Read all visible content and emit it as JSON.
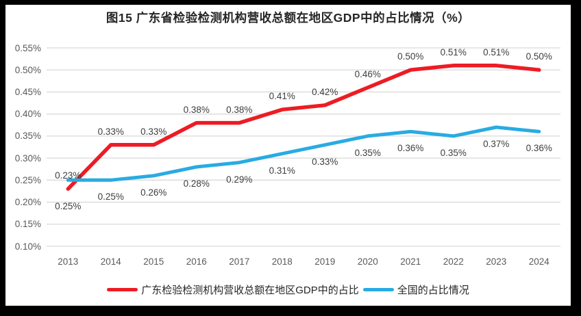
{
  "page": {
    "background_color": "#000000",
    "chart_background_color": "#ffffff"
  },
  "chart_data": {
    "type": "line",
    "title": "图15  广东省检验检测机构营收总额在地区GDP中的占比情况（%）",
    "categories": [
      "2013",
      "2014",
      "2015",
      "2016",
      "2017",
      "2018",
      "2019",
      "2020",
      "2021",
      "2022",
      "2023",
      "2024"
    ],
    "series": [
      {
        "name": "广东检验检测机构营收总额在地区GDP中的占比",
        "color": "#ed1c24",
        "values": [
          0.23,
          0.33,
          0.33,
          0.38,
          0.38,
          0.41,
          0.42,
          0.46,
          0.5,
          0.51,
          0.51,
          0.5
        ],
        "labels": [
          "0.23%",
          "0.33%",
          "0.33%",
          "0.38%",
          "0.38%",
          "0.41%",
          "0.42%",
          "0.46%",
          "0.50%",
          "0.51%",
          "0.51%",
          "0.50%"
        ],
        "label_position": "above"
      },
      {
        "name": "全国的占比情况",
        "color": "#29abe2",
        "values": [
          0.25,
          0.25,
          0.26,
          0.28,
          0.29,
          0.31,
          0.33,
          0.35,
          0.36,
          0.35,
          0.37,
          0.36
        ],
        "labels": [
          "0.25%",
          "0.25%",
          "0.26%",
          "0.28%",
          "0.29%",
          "0.31%",
          "0.33%",
          "0.35%",
          "0.36%",
          "0.35%",
          "0.37%",
          "0.36%"
        ],
        "label_position": "below"
      }
    ],
    "y_axis": {
      "ticks": [
        "0.55%",
        "0.50%",
        "0.45%",
        "0.40%",
        "0.35%",
        "0.30%",
        "0.25%",
        "0.20%",
        "0.15%",
        "0.10%"
      ],
      "max": 0.55,
      "min": 0.1,
      "step": 0.05
    },
    "grid": true,
    "legend_position": "bottom",
    "gridline_color": "#d9d9d9",
    "axis_text_color": "#595959",
    "data_label_color": "#3d3d3d"
  }
}
